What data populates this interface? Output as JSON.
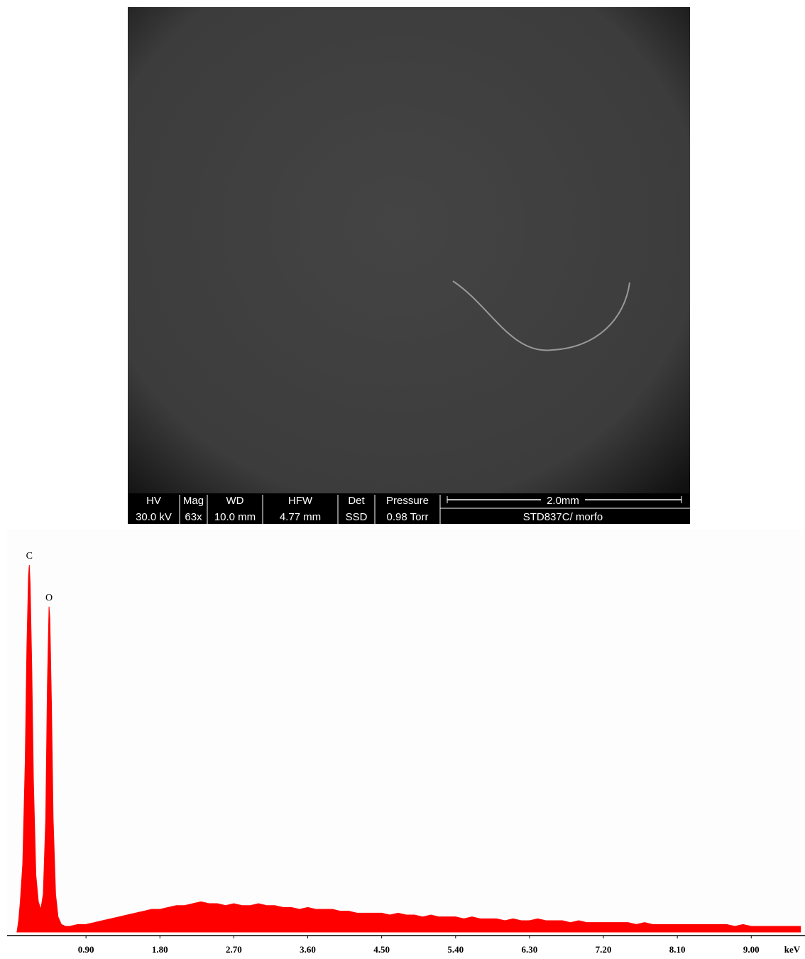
{
  "sem_image": {
    "databar": {
      "columns": [
        {
          "header": "HV",
          "value": "30.0 kV"
        },
        {
          "header": "Mag",
          "value": "63x"
        },
        {
          "header": "WD",
          "value": "10.0 mm"
        },
        {
          "header": "HFW",
          "value": "4.77 mm"
        },
        {
          "header": "Det",
          "value": "SSD"
        },
        {
          "header": "Pressure",
          "value": "0.98  Torr"
        }
      ],
      "scale_bar": "2.0mm",
      "label": "STD837C/ morfo"
    }
  },
  "chart_data": {
    "type": "area",
    "xlabel": "keV",
    "color": "#ff0000",
    "grid": false,
    "xlim": [
      0,
      9.65
    ],
    "ylim": [
      0,
      100
    ],
    "xticks": [
      {
        "value": 0.9,
        "label": "0.90"
      },
      {
        "value": 1.8,
        "label": "1.80"
      },
      {
        "value": 2.7,
        "label": "2.70"
      },
      {
        "value": 3.6,
        "label": "3.60"
      },
      {
        "value": 4.5,
        "label": "4.50"
      },
      {
        "value": 5.4,
        "label": "5.40"
      },
      {
        "value": 6.3,
        "label": "6.30"
      },
      {
        "value": 7.2,
        "label": "7.20"
      },
      {
        "value": 8.1,
        "label": "8.10"
      },
      {
        "value": 9.0,
        "label": "9.00"
      }
    ],
    "annotations": [
      {
        "text": "C",
        "x": 0.21,
        "y": 97
      },
      {
        "text": "O",
        "x": 0.45,
        "y": 86
      }
    ],
    "x": [
      0.06,
      0.08,
      0.1,
      0.13,
      0.16,
      0.18,
      0.2,
      0.21,
      0.22,
      0.24,
      0.26,
      0.29,
      0.32,
      0.35,
      0.38,
      0.41,
      0.43,
      0.45,
      0.46,
      0.48,
      0.5,
      0.53,
      0.56,
      0.6,
      0.65,
      0.7,
      0.8,
      0.9,
      1.0,
      1.1,
      1.2,
      1.3,
      1.4,
      1.5,
      1.6,
      1.7,
      1.8,
      1.9,
      2.0,
      2.1,
      2.2,
      2.3,
      2.4,
      2.5,
      2.6,
      2.7,
      2.8,
      2.9,
      3.0,
      3.1,
      3.2,
      3.3,
      3.4,
      3.5,
      3.6,
      3.7,
      3.8,
      3.9,
      4.0,
      4.1,
      4.2,
      4.3,
      4.4,
      4.5,
      4.6,
      4.7,
      4.8,
      4.9,
      5.0,
      5.1,
      5.2,
      5.3,
      5.4,
      5.5,
      5.6,
      5.7,
      5.8,
      5.9,
      6.0,
      6.1,
      6.2,
      6.3,
      6.4,
      6.5,
      6.6,
      6.7,
      6.8,
      6.9,
      7.0,
      7.1,
      7.2,
      7.3,
      7.4,
      7.5,
      7.6,
      7.7,
      7.8,
      7.9,
      8.0,
      8.1,
      8.2,
      8.3,
      8.4,
      8.5,
      8.6,
      8.7,
      8.8,
      8.9,
      9.0,
      9.1,
      9.2,
      9.3,
      9.4,
      9.5,
      9.6
    ],
    "values": [
      0,
      3,
      8,
      18,
      45,
      75,
      94,
      97,
      92,
      70,
      40,
      15,
      8,
      6,
      10,
      30,
      65,
      86,
      83,
      60,
      30,
      10,
      4,
      2,
      1.5,
      1.5,
      2,
      2,
      2.5,
      3,
      3.5,
      4,
      4.5,
      5,
      5.5,
      6,
      6,
      6.5,
      7,
      7,
      7.5,
      8,
      7.5,
      7.5,
      7,
      7.5,
      7,
      7,
      7.5,
      7,
      7,
      6.5,
      6.5,
      6,
      6.5,
      6,
      6,
      6,
      5.5,
      5.5,
      5,
      5,
      5,
      5,
      4.5,
      5,
      4.5,
      4.5,
      4,
      4.5,
      4,
      4,
      4,
      3.5,
      4,
      3.5,
      3.5,
      3.5,
      3,
      3.5,
      3,
      3,
      3.5,
      3,
      3,
      3,
      2.5,
      3,
      2.5,
      2.5,
      2.5,
      2.5,
      2.5,
      2.5,
      2,
      2.5,
      2,
      2,
      2,
      2,
      2,
      2,
      2,
      2,
      2,
      2,
      1.5,
      2,
      1.5,
      1.5,
      1.5,
      1.5,
      1.5,
      1.5,
      1.5
    ]
  }
}
